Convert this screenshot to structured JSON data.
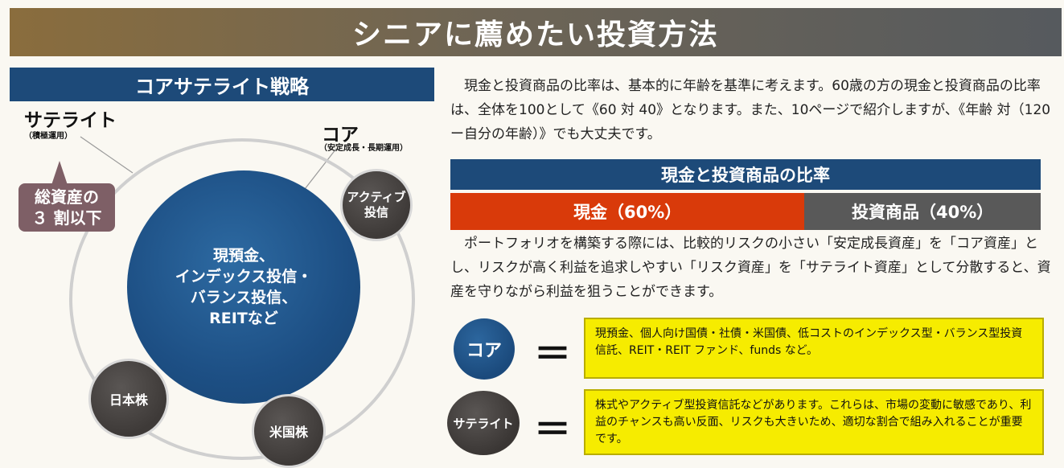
{
  "page": {
    "title": "シニアに薦めたい投資方法"
  },
  "strategy": {
    "header": "コアサテライト戦略",
    "satellite_label": "サテライト",
    "satellite_sub": "（積極運用）",
    "core_label": "コア",
    "core_sub": "（安定成長・長期運用）",
    "callout_line1": "総資産の",
    "callout_line2": "３ 割以下",
    "core_circle_lines": [
      "現預金、",
      "インデックス投信・",
      "バランス投信、",
      "REITなど"
    ],
    "active_fund_lines": [
      "アクティブ",
      "投信"
    ],
    "japan_stock": "日本株",
    "us_stock": "米国株"
  },
  "text": {
    "para1": "　現金と投資商品の比率は、基本的に年齢を基準に考えます。60歳の方の現金と投資商品の比率は、全体を100として《60 対 40》となります。また、10ページで紹介しますが、《年齢 対（120ー自分の年齢）》でも大丈夫です。",
    "para2": "　ポートフォリオを構築する際には、比較的リスクの小さい「安定成長資産」を「コア資産」とし、リスクが高く利益を追求しやすい「リスク資産」を「サテライト資産」として分散すると、資産を守りながら利益を狙うことができます。"
  },
  "ratio": {
    "header": "現金と投資商品の比率",
    "cash_label": "現金（60%）",
    "cash_pct": 60,
    "invest_label": "投資商品（40%）",
    "invest_pct": 40
  },
  "definitions": {
    "core_badge": "コア",
    "satellite_badge": "サテライト",
    "equal_sign": "＝",
    "core_desc": "現預金、個人向け国債・社債・米国債、低コストのインデックス型・バランス型投資信託、REIT・REIT ファンド、funds など。",
    "satellite_desc": "株式やアクティブ型投資信託などがあります。これらは、市場の変動に敏感であり、利益のチャンスも高い反面、リスクも大きいため、適切な割合で組み入れることが重要です。"
  },
  "colors": {
    "navy": "#1d4a79",
    "cash_red": "#d93a0a",
    "invest_gray": "#595959",
    "yellow": "#f6ec00",
    "callout_mauve": "#7e5f66"
  }
}
